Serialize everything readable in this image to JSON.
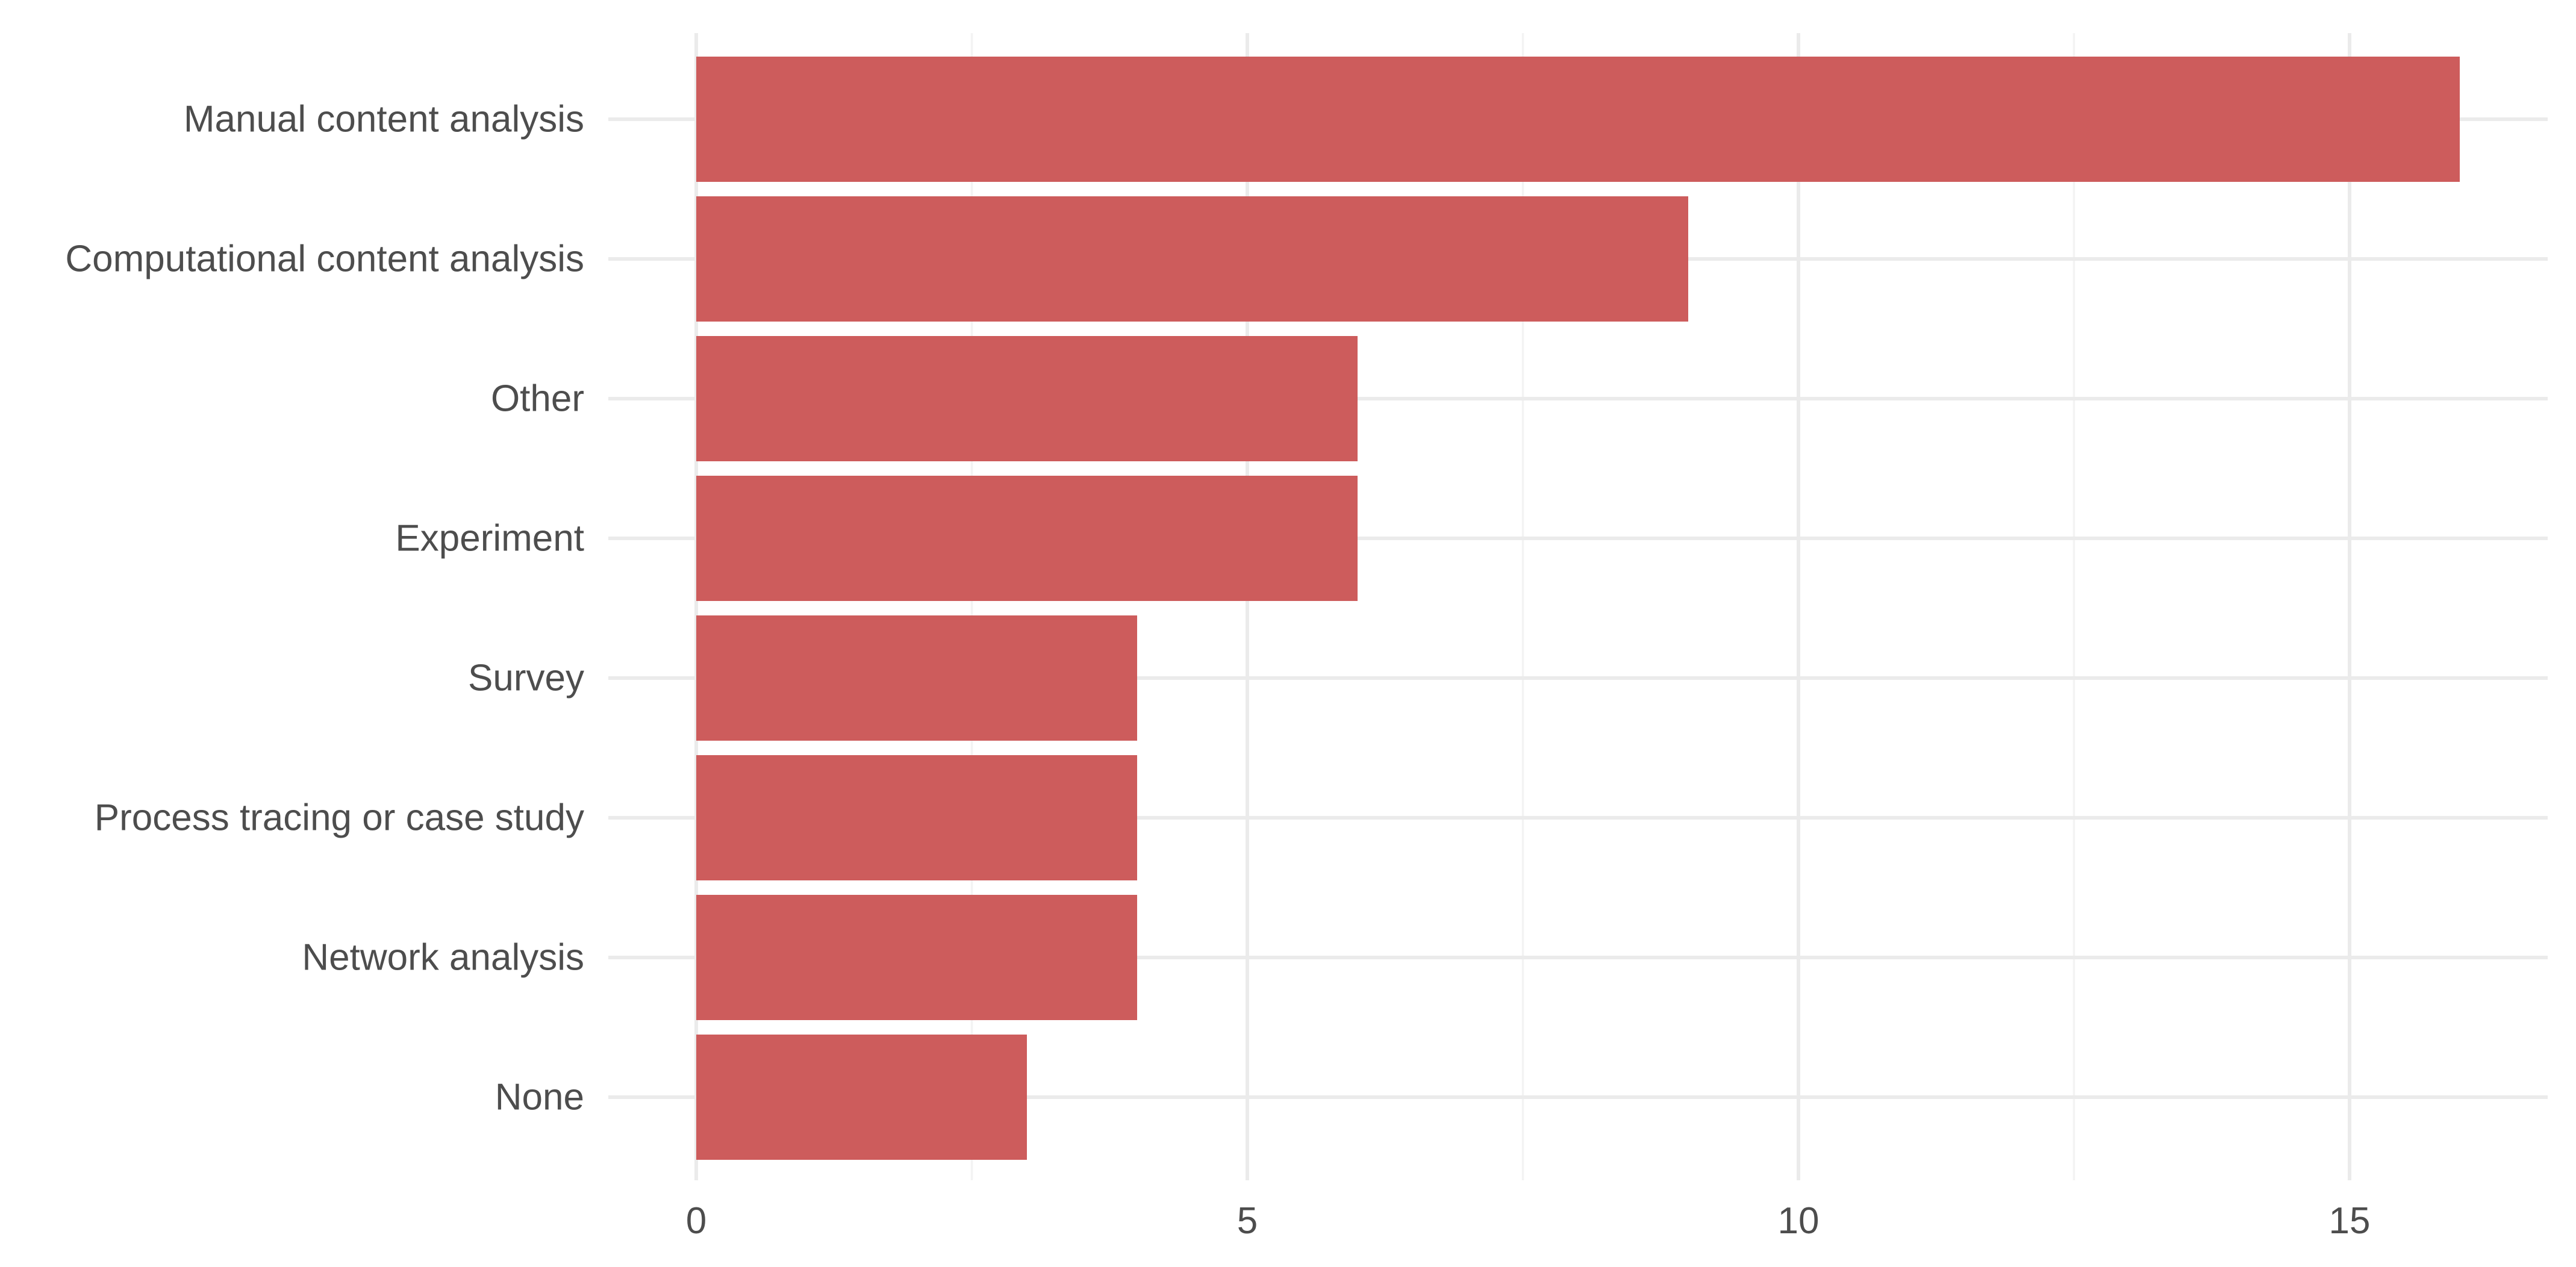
{
  "chart_data": {
    "type": "bar",
    "orientation": "horizontal",
    "title": "",
    "xlabel": "",
    "ylabel": "",
    "categories": [
      "Manual content analysis",
      "Computational content analysis",
      "Other",
      "Experiment",
      "Survey",
      "Process tracing or case study",
      "Network analysis",
      "None"
    ],
    "values": [
      16,
      9,
      6,
      6,
      4,
      4,
      4,
      3
    ],
    "xlim": [
      0,
      16.8
    ],
    "x_ticks": [
      0,
      5,
      10,
      15
    ],
    "x_tick_labels": [
      "0",
      "5",
      "10",
      "15"
    ],
    "grid": true,
    "legend": "none",
    "bar_color": "#cd5c5c"
  }
}
